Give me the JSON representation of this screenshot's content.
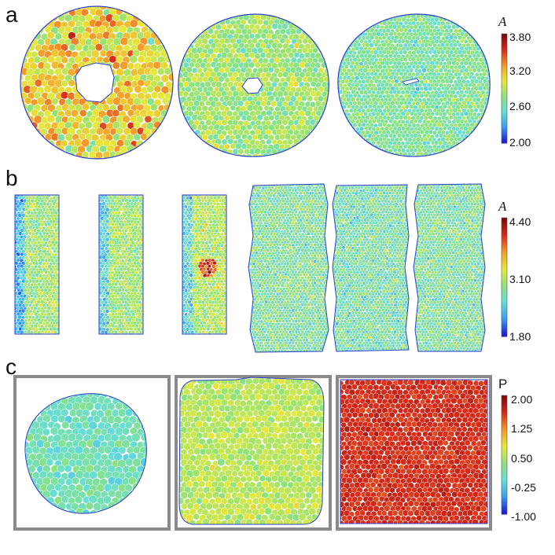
{
  "panels": {
    "a": {
      "label": "a",
      "colorbar": {
        "title": "A",
        "ticks": [
          "3.80",
          "3.20",
          "2.60",
          "2.00"
        ],
        "range": [
          2.0,
          3.8
        ]
      },
      "images": [
        {
          "shape": "annulus",
          "caption": ""
        },
        {
          "shape": "disk with small hole",
          "caption": ""
        },
        {
          "shape": "disk",
          "caption": ""
        }
      ]
    },
    "b": {
      "label": "b",
      "colorbar": {
        "title": "A",
        "ticks": [
          "4.40",
          "3.10",
          "1.80"
        ],
        "range": [
          1.8,
          4.4
        ]
      },
      "images": [
        {
          "shape": "narrow rectangle"
        },
        {
          "shape": "narrow rectangle"
        },
        {
          "shape": "narrow rectangle"
        },
        {
          "shape": "wide irregular rectangle"
        },
        {
          "shape": "wide irregular rectangle"
        },
        {
          "shape": "wide irregular rectangle"
        }
      ]
    },
    "c": {
      "label": "c",
      "colorbar": {
        "title": "P",
        "ticks": [
          "2.00",
          "1.25",
          "0.50",
          "-0.25",
          "-1.00"
        ],
        "range": [
          -1.0,
          2.0
        ]
      },
      "images": [
        {
          "shape": "blob in square frame"
        },
        {
          "shape": "rounded square in square frame"
        },
        {
          "shape": "filled square frame"
        }
      ]
    }
  },
  "colors": {
    "boundary": "#2a3fd1",
    "frame": "#8a8a8a",
    "cell_edge": "#ffffff",
    "colormap": [
      "#1a1ad6",
      "#3aa0f0",
      "#66ddd8",
      "#8fe27a",
      "#e8e83a",
      "#f39a2a",
      "#d92a1a",
      "#7a0a0a"
    ]
  }
}
